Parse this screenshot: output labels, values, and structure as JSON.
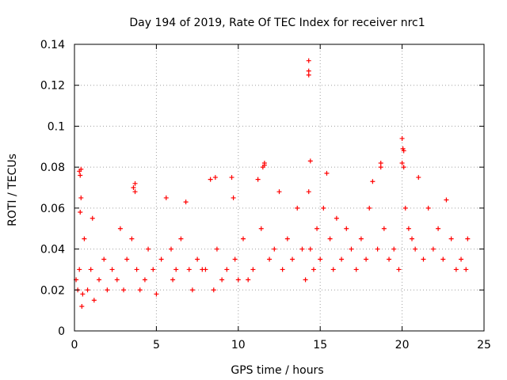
{
  "chart_data": {
    "type": "scatter",
    "title": "Day 194 of 2019, Rate Of TEC Index for receiver nrc1",
    "xlabel": "GPS time / hours",
    "ylabel": "ROTI / TECUs",
    "xlim": [
      0,
      25
    ],
    "ylim": [
      0,
      0.14
    ],
    "xticks": [
      0,
      5,
      10,
      15,
      20,
      25
    ],
    "yticks": [
      0,
      0.02,
      0.04,
      0.06,
      0.08,
      0.1,
      0.12,
      0.14
    ],
    "xtick_labels": [
      "0",
      "5",
      "10",
      "15",
      "20",
      "25"
    ],
    "ytick_labels": [
      "0",
      "0.02",
      "0.04",
      "0.06",
      "0.08",
      "0.1",
      "0.12",
      "0.14"
    ],
    "grid": true,
    "marker": "+",
    "marker_color": "#ff0000",
    "series": [
      {
        "name": "ROTI",
        "x": [
          0.1,
          0.2,
          0.3,
          0.3,
          0.35,
          0.4,
          0.45,
          0.5,
          0.6,
          0.8,
          1.0,
          1.1,
          1.2,
          1.5,
          1.8,
          2.0,
          2.3,
          2.6,
          2.8,
          3.0,
          3.2,
          3.5,
          3.6,
          3.7,
          3.8,
          4.0,
          4.3,
          4.5,
          4.8,
          5.0,
          5.3,
          5.6,
          5.9,
          6.0,
          6.2,
          6.5,
          6.8,
          7.0,
          7.2,
          7.5,
          7.8,
          8.0,
          8.3,
          8.5,
          8.7,
          9.0,
          9.3,
          9.6,
          9.8,
          10.0,
          10.3,
          10.6,
          10.9,
          11.2,
          11.4,
          11.6,
          11.9,
          12.2,
          12.5,
          12.7,
          13.0,
          13.3,
          13.6,
          13.9,
          14.1,
          14.3,
          14.4,
          14.6,
          14.8,
          15.0,
          15.2,
          15.4,
          15.6,
          15.8,
          16.0,
          16.3,
          16.6,
          16.9,
          17.2,
          17.5,
          17.8,
          18.0,
          18.2,
          18.5,
          18.7,
          18.9,
          19.2,
          19.5,
          19.8,
          20.0,
          20.05,
          20.1,
          20.2,
          20.4,
          20.6,
          20.8,
          21.0,
          21.3,
          21.6,
          21.9,
          22.2,
          22.5,
          22.7,
          23.0,
          23.3,
          23.6,
          23.9,
          24.0,
          14.3,
          14.3,
          14.3,
          14.4,
          11.5,
          11.6,
          9.7,
          8.6,
          20.0,
          20.1,
          0.4,
          0.35,
          3.7,
          18.7
        ],
        "y": [
          0.025,
          0.02,
          0.03,
          0.078,
          0.076,
          0.079,
          0.012,
          0.018,
          0.045,
          0.02,
          0.03,
          0.055,
          0.015,
          0.025,
          0.035,
          0.02,
          0.03,
          0.025,
          0.05,
          0.02,
          0.035,
          0.045,
          0.07,
          0.072,
          0.03,
          0.02,
          0.025,
          0.04,
          0.03,
          0.018,
          0.035,
          0.065,
          0.04,
          0.025,
          0.03,
          0.045,
          0.063,
          0.03,
          0.02,
          0.035,
          0.03,
          0.03,
          0.074,
          0.02,
          0.04,
          0.025,
          0.03,
          0.075,
          0.035,
          0.025,
          0.045,
          0.025,
          0.03,
          0.074,
          0.05,
          0.082,
          0.035,
          0.04,
          0.068,
          0.03,
          0.045,
          0.035,
          0.06,
          0.04,
          0.025,
          0.068,
          0.04,
          0.03,
          0.05,
          0.035,
          0.06,
          0.077,
          0.045,
          0.03,
          0.055,
          0.035,
          0.05,
          0.04,
          0.03,
          0.045,
          0.035,
          0.06,
          0.073,
          0.04,
          0.08,
          0.05,
          0.035,
          0.04,
          0.03,
          0.094,
          0.089,
          0.08,
          0.06,
          0.05,
          0.045,
          0.04,
          0.075,
          0.035,
          0.06,
          0.04,
          0.05,
          0.035,
          0.064,
          0.045,
          0.03,
          0.035,
          0.03,
          0.045,
          0.132,
          0.127,
          0.125,
          0.083,
          0.08,
          0.081,
          0.065,
          0.075,
          0.082,
          0.088,
          0.065,
          0.058,
          0.068,
          0.082
        ]
      }
    ]
  }
}
